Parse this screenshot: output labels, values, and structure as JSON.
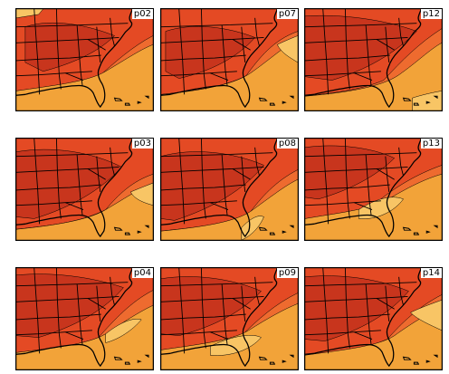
{
  "figure": {
    "panels": [
      {
        "label": "p02",
        "variant": 0
      },
      {
        "label": "p07",
        "variant": 1
      },
      {
        "label": "p12",
        "variant": 2
      },
      {
        "label": "p03",
        "variant": 3
      },
      {
        "label": "p08",
        "variant": 4
      },
      {
        "label": "p13",
        "variant": 5
      },
      {
        "label": "p04",
        "variant": 6
      },
      {
        "label": "p09",
        "variant": 7
      },
      {
        "label": "p14",
        "variant": 8
      }
    ],
    "colors": {
      "darkest": "#c8351d",
      "dark": "#e44a24",
      "mid": "#ee6b2f",
      "light": "#f2a339",
      "lightest": "#f8c565",
      "border": "#000000"
    }
  }
}
